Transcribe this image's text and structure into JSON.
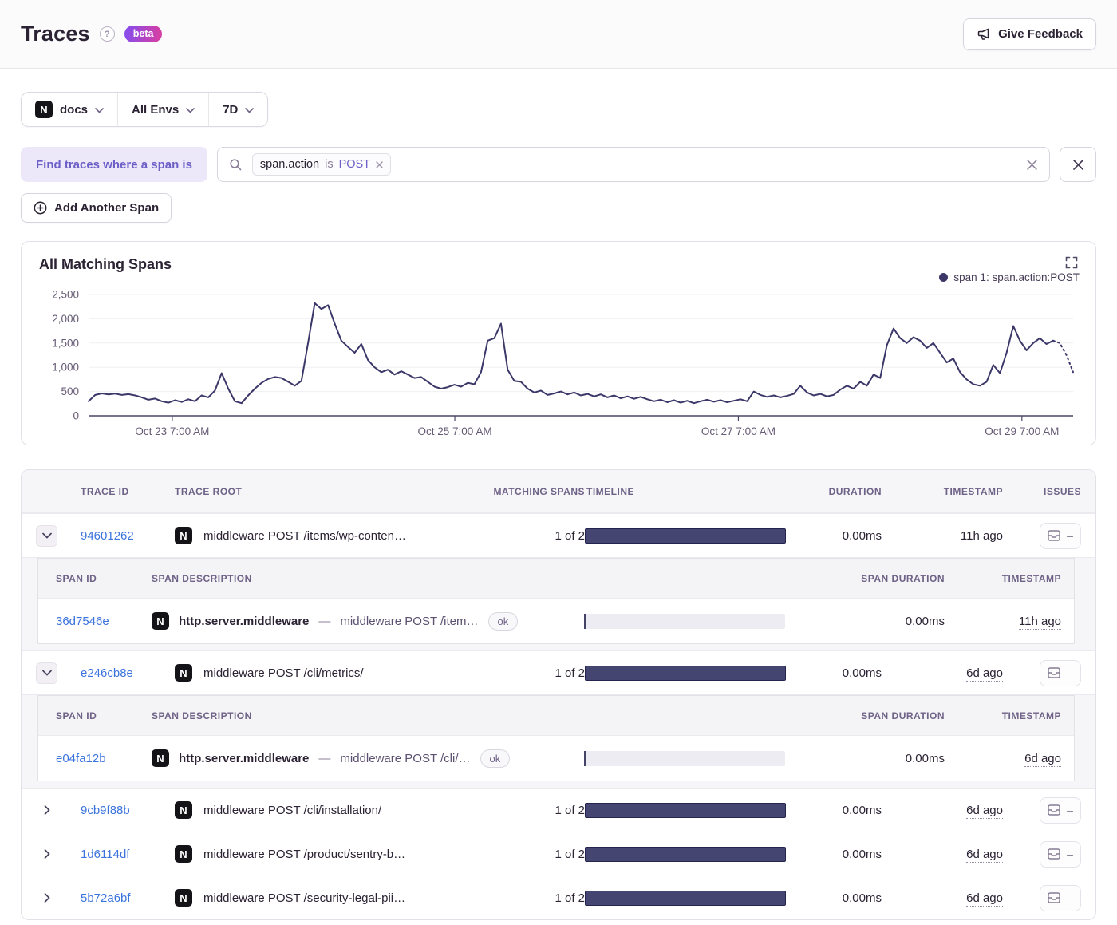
{
  "header": {
    "title": "Traces",
    "beta_label": "beta",
    "feedback_label": "Give Feedback"
  },
  "filters": {
    "project": "docs",
    "project_icon": "nextjs-logo",
    "environment": "All Envs",
    "period": "7D"
  },
  "search": {
    "find_label": "Find traces where a span is",
    "token": {
      "key": "span.action",
      "op": "is",
      "value": "POST"
    },
    "add_span_label": "Add Another Span"
  },
  "chart": {
    "title": "All Matching Spans",
    "legend": "span 1: span.action:POST"
  },
  "chart_data": {
    "type": "line",
    "title": "All Matching Spans",
    "series_name": "span 1: span.action:POST",
    "xlabel": "",
    "ylabel": "",
    "ylim": [
      0,
      2500
    ],
    "yticks": [
      0,
      500,
      1000,
      1500,
      2000,
      2500
    ],
    "ytick_labels": [
      "0",
      "500",
      "1,000",
      "1,500",
      "2,000",
      "2,500"
    ],
    "xticks": [
      {
        "label": "Oct 23 7:00 AM",
        "pos": 0.085
      },
      {
        "label": "Oct 25 7:00 AM",
        "pos": 0.372
      },
      {
        "label": "Oct 27 7:00 AM",
        "pos": 0.66
      },
      {
        "label": "Oct 29 7:00 AM",
        "pos": 0.948
      }
    ],
    "grid": true,
    "legend_position": "top-right",
    "dashed_tail_points": 3,
    "values": [
      300,
      430,
      460,
      440,
      455,
      430,
      445,
      420,
      380,
      330,
      355,
      300,
      270,
      320,
      285,
      340,
      300,
      420,
      380,
      520,
      880,
      560,
      300,
      260,
      420,
      560,
      680,
      760,
      800,
      780,
      700,
      620,
      720,
      1500,
      2320,
      2200,
      2280,
      1900,
      1550,
      1420,
      1300,
      1480,
      1150,
      1000,
      900,
      950,
      850,
      920,
      850,
      780,
      800,
      700,
      600,
      560,
      590,
      640,
      600,
      680,
      650,
      900,
      1550,
      1600,
      1900,
      950,
      720,
      700,
      560,
      480,
      520,
      430,
      460,
      500,
      440,
      480,
      420,
      450,
      400,
      440,
      380,
      420,
      360,
      400,
      350,
      390,
      340,
      300,
      330,
      280,
      320,
      270,
      310,
      260,
      300,
      330,
      290,
      320,
      280,
      310,
      340,
      300,
      500,
      430,
      390,
      420,
      380,
      410,
      450,
      620,
      480,
      420,
      450,
      400,
      430,
      540,
      620,
      560,
      700,
      620,
      850,
      780,
      1450,
      1800,
      1600,
      1500,
      1620,
      1550,
      1400,
      1500,
      1300,
      1100,
      1180,
      900,
      750,
      650,
      620,
      700,
      1050,
      880,
      1300,
      1850,
      1550,
      1350,
      1500,
      1600,
      1480,
      1550,
      1500,
      1250,
      900
    ]
  },
  "table": {
    "columns": [
      "TRACE ID",
      "TRACE ROOT",
      "MATCHING SPANS",
      "TIMELINE",
      "DURATION",
      "TIMESTAMP",
      "ISSUES"
    ],
    "span_columns": [
      "SPAN ID",
      "SPAN DESCRIPTION",
      "SPAN DURATION",
      "TIMESTAMP"
    ],
    "issues_empty": "–",
    "span_separator": "—",
    "rows": [
      {
        "trace_id": "94601262",
        "trace_root": "middleware POST /items/wp-conten…",
        "matching_spans": "1 of 2",
        "duration": "0.00ms",
        "timestamp": "11h ago",
        "expanded": true,
        "spans": [
          {
            "span_id": "36d7546e",
            "op": "http.server.middleware",
            "description": "middleware POST /item…",
            "status": "ok",
            "duration": "0.00ms",
            "timestamp": "11h ago"
          }
        ]
      },
      {
        "trace_id": "e246cb8e",
        "trace_root": "middleware POST /cli/metrics/",
        "matching_spans": "1 of 2",
        "duration": "0.00ms",
        "timestamp": "6d ago",
        "expanded": true,
        "spans": [
          {
            "span_id": "e04fa12b",
            "op": "http.server.middleware",
            "description": "middleware POST /cli/…",
            "status": "ok",
            "duration": "0.00ms",
            "timestamp": "6d ago"
          }
        ]
      },
      {
        "trace_id": "9cb9f88b",
        "trace_root": "middleware POST /cli/installation/",
        "matching_spans": "1 of 2",
        "duration": "0.00ms",
        "timestamp": "6d ago",
        "expanded": false,
        "spans": []
      },
      {
        "trace_id": "1d6114df",
        "trace_root": "middleware POST /product/sentry-b…",
        "matching_spans": "1 of 2",
        "duration": "0.00ms",
        "timestamp": "6d ago",
        "expanded": false,
        "spans": []
      },
      {
        "trace_id": "5b72a6bf",
        "trace_root": "middleware POST /security-legal-pii…",
        "matching_spans": "1 of 2",
        "duration": "0.00ms",
        "timestamp": "6d ago",
        "expanded": false,
        "spans": []
      }
    ]
  },
  "colors": {
    "accent": "#6C5FC7",
    "link": "#3C74DD",
    "chart_line": "#3B3768",
    "bar_fill": "#454571",
    "bar_border": "#25244E"
  }
}
